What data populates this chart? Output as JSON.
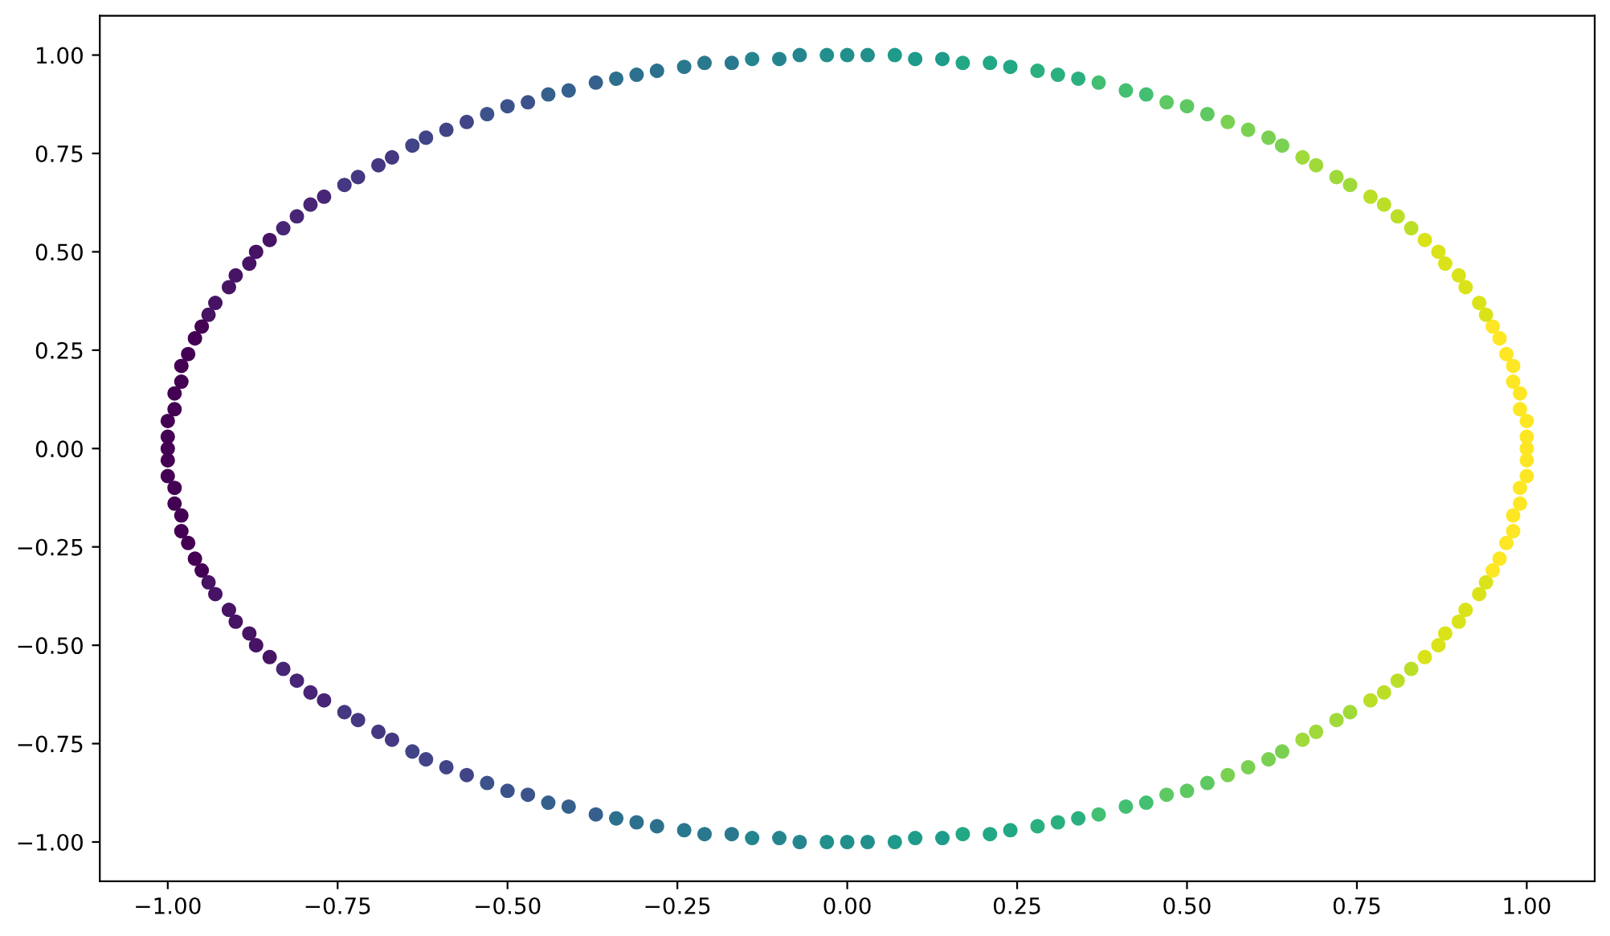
{
  "chart_data": {
    "type": "scatter",
    "x": [
      1.0,
      1.0,
      1.0,
      0.99,
      0.99,
      0.98,
      0.98,
      0.97,
      0.96,
      0.95,
      0.94,
      0.93,
      0.91,
      0.9,
      0.88,
      0.87,
      0.85,
      0.83,
      0.81,
      0.79,
      0.77,
      0.74,
      0.72,
      0.69,
      0.67,
      0.64,
      0.62,
      0.59,
      0.56,
      0.53,
      0.5,
      0.47,
      0.44,
      0.41,
      0.37,
      0.34,
      0.31,
      0.28,
      0.24,
      0.21,
      0.17,
      0.14,
      0.1,
      0.07,
      0.03,
      0.0,
      -0.03,
      -0.07,
      -0.1,
      -0.14,
      -0.17,
      -0.21,
      -0.24,
      -0.28,
      -0.31,
      -0.34,
      -0.37,
      -0.41,
      -0.44,
      -0.47,
      -0.5,
      -0.53,
      -0.56,
      -0.59,
      -0.62,
      -0.64,
      -0.67,
      -0.69,
      -0.72,
      -0.74,
      -0.77,
      -0.79,
      -0.81,
      -0.83,
      -0.85,
      -0.87,
      -0.88,
      -0.9,
      -0.91,
      -0.93,
      -0.94,
      -0.95,
      -0.96,
      -0.97,
      -0.98,
      -0.98,
      -0.99,
      -0.99,
      -1.0,
      -1.0,
      -1.0,
      -1.0,
      -1.0,
      -0.99,
      -0.99,
      -0.98,
      -0.98,
      -0.97,
      -0.96,
      -0.95,
      -0.94,
      -0.93,
      -0.91,
      -0.9,
      -0.88,
      -0.87,
      -0.85,
      -0.83,
      -0.81,
      -0.79,
      -0.77,
      -0.74,
      -0.72,
      -0.69,
      -0.67,
      -0.64,
      -0.62,
      -0.59,
      -0.56,
      -0.53,
      -0.5,
      -0.47,
      -0.44,
      -0.41,
      -0.37,
      -0.34,
      -0.31,
      -0.28,
      -0.24,
      -0.21,
      -0.17,
      -0.14,
      -0.1,
      -0.07,
      -0.03,
      0.0,
      0.03,
      0.07,
      0.1,
      0.14,
      0.17,
      0.21,
      0.24,
      0.28,
      0.31,
      0.34,
      0.37,
      0.41,
      0.44,
      0.47,
      0.5,
      0.53,
      0.56,
      0.59,
      0.62,
      0.64,
      0.67,
      0.69,
      0.72,
      0.74,
      0.77,
      0.79,
      0.81,
      0.83,
      0.85,
      0.87,
      0.88,
      0.9,
      0.91,
      0.93,
      0.94,
      0.95,
      0.96,
      0.97,
      0.98,
      0.98,
      0.99,
      0.99,
      1.0,
      1.0
    ],
    "values": [
      0.0,
      0.03,
      0.07,
      0.1,
      0.14,
      0.17,
      0.21,
      0.24,
      0.28,
      0.31,
      0.34,
      0.37,
      0.41,
      0.44,
      0.47,
      0.5,
      0.53,
      0.56,
      0.59,
      0.62,
      0.64,
      0.67,
      0.69,
      0.72,
      0.74,
      0.77,
      0.79,
      0.81,
      0.83,
      0.85,
      0.87,
      0.88,
      0.9,
      0.91,
      0.93,
      0.94,
      0.95,
      0.96,
      0.97,
      0.98,
      0.98,
      0.99,
      0.99,
      1.0,
      1.0,
      1.0,
      1.0,
      1.0,
      0.99,
      0.99,
      0.98,
      0.98,
      0.97,
      0.96,
      0.95,
      0.94,
      0.93,
      0.91,
      0.9,
      0.88,
      0.87,
      0.85,
      0.83,
      0.81,
      0.79,
      0.77,
      0.74,
      0.72,
      0.69,
      0.67,
      0.64,
      0.62,
      0.59,
      0.56,
      0.53,
      0.5,
      0.47,
      0.44,
      0.41,
      0.37,
      0.34,
      0.31,
      0.28,
      0.24,
      0.21,
      0.17,
      0.14,
      0.1,
      0.07,
      0.03,
      0.0,
      -0.03,
      -0.07,
      -0.1,
      -0.14,
      -0.17,
      -0.21,
      -0.24,
      -0.28,
      -0.31,
      -0.34,
      -0.37,
      -0.41,
      -0.44,
      -0.47,
      -0.5,
      -0.53,
      -0.56,
      -0.59,
      -0.62,
      -0.64,
      -0.67,
      -0.69,
      -0.72,
      -0.74,
      -0.77,
      -0.79,
      -0.81,
      -0.83,
      -0.85,
      -0.87,
      -0.88,
      -0.9,
      -0.91,
      -0.93,
      -0.94,
      -0.95,
      -0.96,
      -0.97,
      -0.98,
      -0.98,
      -0.99,
      -0.99,
      -1.0,
      -1.0,
      -1.0,
      -1.0,
      -1.0,
      -0.99,
      -0.99,
      -0.98,
      -0.98,
      -0.97,
      -0.96,
      -0.95,
      -0.94,
      -0.93,
      -0.91,
      -0.9,
      -0.88,
      -0.87,
      -0.85,
      -0.83,
      -0.81,
      -0.79,
      -0.77,
      -0.74,
      -0.72,
      -0.69,
      -0.67,
      -0.64,
      -0.62,
      -0.59,
      -0.56,
      -0.53,
      -0.5,
      -0.47,
      -0.44,
      -0.41,
      -0.37,
      -0.34,
      -0.31,
      -0.28,
      -0.24,
      -0.21,
      -0.17,
      -0.14,
      -0.1,
      -0.07,
      -0.03
    ],
    "colors": [
      "#fde725",
      "#fde725",
      "#fde725",
      "#fde725",
      "#fde725",
      "#fde725",
      "#fde725",
      "#fde725",
      "#fde725",
      "#fde725",
      "#dae319",
      "#dae319",
      "#dae319",
      "#dae319",
      "#dae319",
      "#dae319",
      "#dae319",
      "#bbdf27",
      "#bbdf27",
      "#bbdf27",
      "#bbdf27",
      "#9fda3a",
      "#9fda3a",
      "#9fda3a",
      "#9fda3a",
      "#7ad151",
      "#7ad151",
      "#7ad151",
      "#7ad151",
      "#5ec962",
      "#5ec962",
      "#5ec962",
      "#43bf71",
      "#43bf71",
      "#43bf71",
      "#2ab07f",
      "#2ab07f",
      "#2ab07f",
      "#22a884",
      "#22a884",
      "#22a884",
      "#1e9b8a",
      "#1e9b8a",
      "#1e9b8a",
      "#21908c",
      "#21908c",
      "#21908c",
      "#25858e",
      "#25858e",
      "#25858e",
      "#2a788e",
      "#2a788e",
      "#2a788e",
      "#2d708e",
      "#2d708e",
      "#2d708e",
      "#35608d",
      "#35608d",
      "#35608d",
      "#3b528b",
      "#3b528b",
      "#3b528b",
      "#414487",
      "#414487",
      "#414487",
      "#414487",
      "#453781",
      "#453781",
      "#453781",
      "#453781",
      "#482576",
      "#482576",
      "#482576",
      "#482576",
      "#471365",
      "#471365",
      "#471365",
      "#471365",
      "#471365",
      "#471365",
      "#471365",
      "#440154",
      "#440154",
      "#440154",
      "#440154",
      "#440154",
      "#440154",
      "#440154",
      "#440154",
      "#440154",
      "#440154",
      "#440154",
      "#440154",
      "#440154",
      "#440154",
      "#440154",
      "#440154",
      "#440154",
      "#440154",
      "#440154",
      "#471365",
      "#471365",
      "#471365",
      "#471365",
      "#471365",
      "#471365",
      "#471365",
      "#482576",
      "#482576",
      "#482576",
      "#482576",
      "#453781",
      "#453781",
      "#453781",
      "#453781",
      "#414487",
      "#414487",
      "#414487",
      "#414487",
      "#3b528b",
      "#3b528b",
      "#3b528b",
      "#35608d",
      "#35608d",
      "#35608d",
      "#2d708e",
      "#2d708e",
      "#2d708e",
      "#2a788e",
      "#2a788e",
      "#2a788e",
      "#25858e",
      "#25858e",
      "#25858e",
      "#21908c",
      "#21908c",
      "#21908c",
      "#1e9b8a",
      "#1e9b8a",
      "#1e9b8a",
      "#22a884",
      "#22a884",
      "#22a884",
      "#2ab07f",
      "#2ab07f",
      "#2ab07f",
      "#43bf71",
      "#43bf71",
      "#43bf71",
      "#5ec962",
      "#5ec962",
      "#5ec962",
      "#7ad151",
      "#7ad151",
      "#7ad151",
      "#7ad151",
      "#9fda3a",
      "#9fda3a",
      "#9fda3a",
      "#9fda3a",
      "#bbdf27",
      "#bbdf27",
      "#bbdf27",
      "#bbdf27",
      "#dae319",
      "#dae319",
      "#dae319",
      "#dae319",
      "#dae319",
      "#dae319",
      "#dae319",
      "#fde725",
      "#fde725",
      "#fde725",
      "#fde725",
      "#fde725",
      "#fde725",
      "#fde725",
      "#fde725",
      "#fde725"
    ],
    "marker": "circle",
    "xlim": [
      -1.1,
      1.1
    ],
    "ylim": [
      -1.1,
      1.1
    ],
    "xticks": [
      {
        "value": -1.0,
        "label": "−1.00"
      },
      {
        "value": -0.75,
        "label": "−0.75"
      },
      {
        "value": -0.5,
        "label": "−0.50"
      },
      {
        "value": -0.25,
        "label": "−0.25"
      },
      {
        "value": 0.0,
        "label": "0.00"
      },
      {
        "value": 0.25,
        "label": "0.25"
      },
      {
        "value": 0.5,
        "label": "0.50"
      },
      {
        "value": 0.75,
        "label": "0.75"
      },
      {
        "value": 1.0,
        "label": "1.00"
      }
    ],
    "yticks": [
      {
        "value": -1.0,
        "label": "−1.00"
      },
      {
        "value": -0.75,
        "label": "−0.75"
      },
      {
        "value": -0.5,
        "label": "−0.50"
      },
      {
        "value": -0.25,
        "label": "−0.25"
      },
      {
        "value": 0.0,
        "label": "0.00"
      },
      {
        "value": 0.25,
        "label": "0.25"
      },
      {
        "value": 0.5,
        "label": "0.50"
      },
      {
        "value": 0.75,
        "label": "0.75"
      },
      {
        "value": 1.0,
        "label": "1.00"
      }
    ]
  }
}
